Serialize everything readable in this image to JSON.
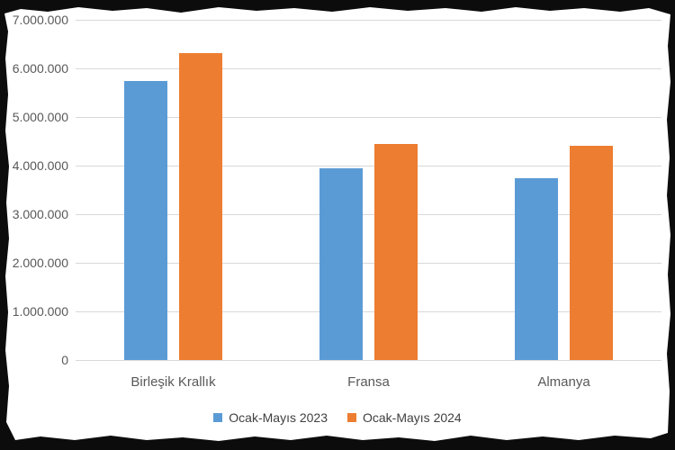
{
  "chart_data": {
    "type": "bar",
    "categories": [
      "Birleşik Krallık",
      "Fransa",
      "Almanya"
    ],
    "series": [
      {
        "name": "Ocak-Mayıs 2023",
        "color": "#5b9bd5",
        "values": [
          5750000,
          3950000,
          3750000
        ]
      },
      {
        "name": "Ocak-Mayıs 2024",
        "color": "#ed7d31",
        "values": [
          6320000,
          4440000,
          4400000
        ]
      }
    ],
    "ylim": [
      0,
      7000000
    ],
    "ytick_step": 1000000,
    "ytick_labels": [
      "0",
      "1.000.000",
      "2.000.000",
      "3.000.000",
      "4.000.000",
      "5.000.000",
      "6.000.000",
      "7.000.000"
    ],
    "grid": true,
    "legend_position": "bottom",
    "colors": {
      "gridline": "#d9d9d9",
      "tick_text": "#595959",
      "category_text": "#595959",
      "legend_text": "#404040",
      "panel_background": "#ffffff",
      "frame_background": "#0c0c0c"
    }
  }
}
